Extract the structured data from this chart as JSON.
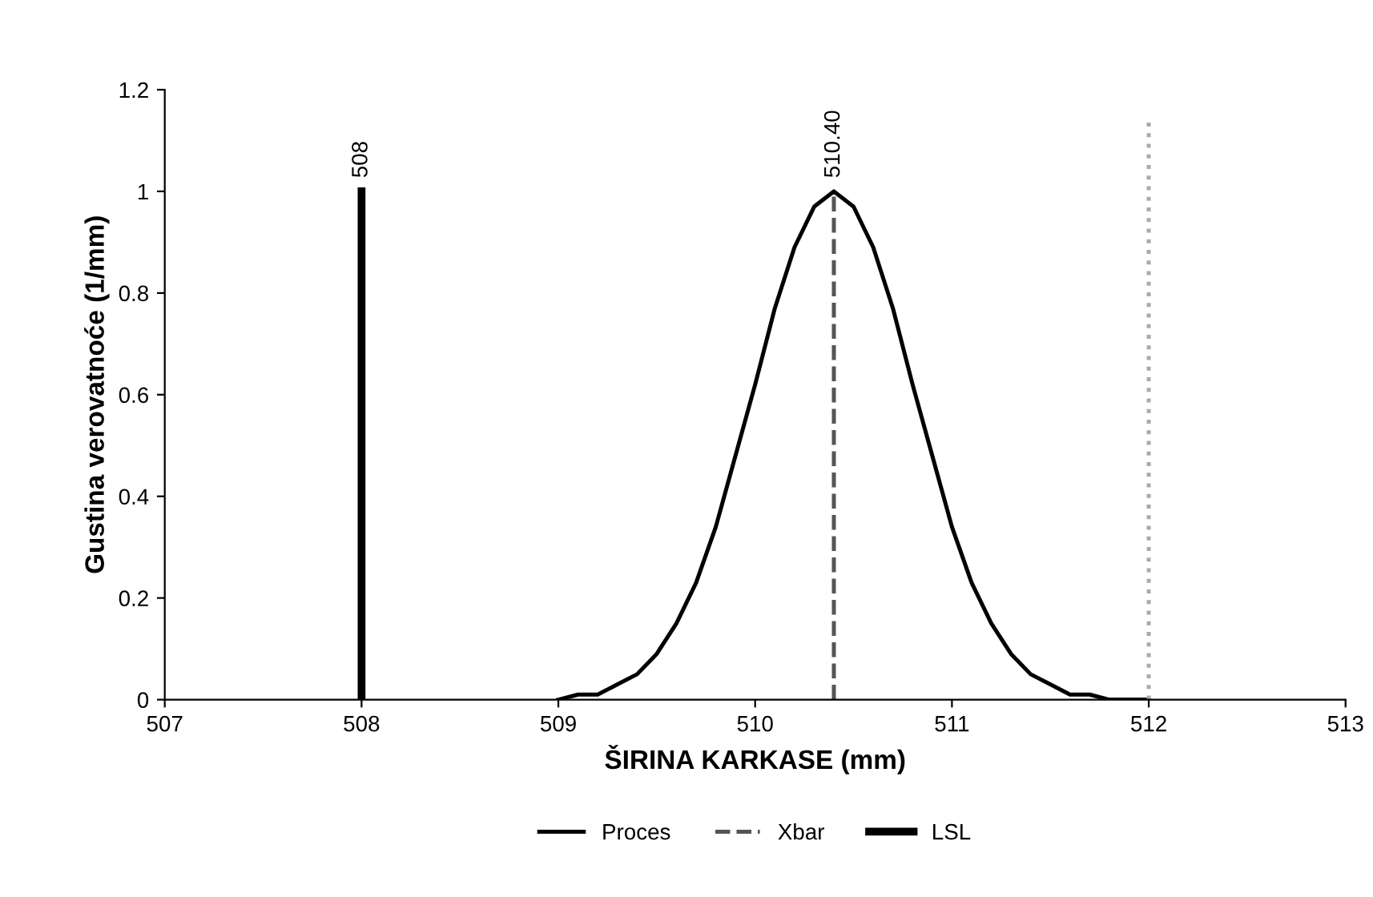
{
  "chart_data": {
    "type": "line",
    "xlabel": "ŠIRINA KARKASE (mm)",
    "ylabel": "Gustina verovatnoće (1/mm)",
    "series": [
      {
        "name": "Proces",
        "color": "#000000",
        "line_style": "solid",
        "x": [
          509.0,
          509.1,
          509.2,
          509.3,
          509.4,
          509.5,
          509.6,
          509.7,
          509.8,
          509.9,
          510.0,
          510.1,
          510.2,
          510.3,
          510.4,
          510.5,
          510.6,
          510.7,
          510.8,
          510.9,
          511.0,
          511.1,
          511.2,
          511.3,
          511.4,
          511.5,
          511.6,
          511.7,
          511.8,
          512.0
        ],
        "values": [
          0,
          0.01,
          0.01,
          0.03,
          0.05,
          0.09,
          0.15,
          0.23,
          0.34,
          0.48,
          0.62,
          0.77,
          0.89,
          0.97,
          1.0,
          0.97,
          0.89,
          0.77,
          0.62,
          0.48,
          0.34,
          0.23,
          0.15,
          0.09,
          0.05,
          0.03,
          0.01,
          0.01,
          0,
          0
        ]
      },
      {
        "name": "Xbar",
        "color": "#555555",
        "line_style": "dashed",
        "x": [
          510.4,
          510.4
        ],
        "values": [
          0,
          1.0
        ]
      },
      {
        "name": "LSL",
        "color": "#000000",
        "line_style": "solid",
        "x": [
          508,
          508
        ],
        "values": [
          0,
          1.0
        ]
      },
      {
        "color": "#aaaaaa",
        "line_style": "dotted",
        "x": [
          512,
          512
        ],
        "values": [
          0,
          1.14
        ]
      }
    ],
    "annotations": [
      {
        "text": "508",
        "x": 508,
        "y": 1.0
      },
      {
        "text": "510.40",
        "x": 510.4,
        "y": 1.0
      }
    ],
    "xlim": [
      507,
      513
    ],
    "xticks": [
      507,
      508,
      509,
      510,
      511,
      512,
      513
    ],
    "ylim": [
      0,
      1.2
    ],
    "yticks": [
      0,
      0.2,
      0.4,
      0.6,
      0.8,
      1,
      1.2
    ],
    "grid": false,
    "legend": "bottom"
  }
}
